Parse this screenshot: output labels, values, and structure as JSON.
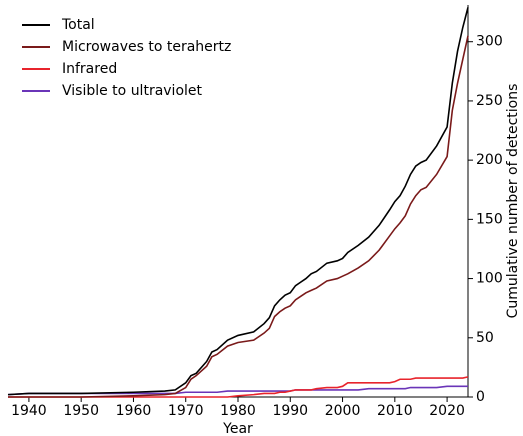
{
  "chart_data": {
    "type": "line",
    "xlabel": "Year",
    "ylabel": "Cumulative number of detections",
    "x": [
      1936,
      1940,
      1950,
      1960,
      1966,
      1968,
      1970,
      1971,
      1972,
      1974,
      1975,
      1976,
      1978,
      1980,
      1983,
      1985,
      1986,
      1987,
      1988,
      1989,
      1990,
      1991,
      1992,
      1993,
      1994,
      1995,
      1997,
      1999,
      2000,
      2001,
      2003,
      2005,
      2007,
      2009,
      2010,
      2011,
      2012,
      2013,
      2014,
      2015,
      2016,
      2018,
      2020,
      2021,
      2022,
      2023,
      2024
    ],
    "series": [
      {
        "name": "Total",
        "color": "#000000",
        "values": [
          2,
          3,
          3,
          4,
          5,
          6,
          12,
          18,
          20,
          30,
          38,
          40,
          48,
          52,
          55,
          62,
          67,
          77,
          82,
          86,
          88,
          94,
          97,
          100,
          104,
          106,
          113,
          115,
          117,
          122,
          128,
          135,
          145,
          158,
          165,
          170,
          178,
          188,
          195,
          198,
          200,
          212,
          228,
          265,
          292,
          312,
          329
        ]
      },
      {
        "name": "Microwaves to terahertz",
        "color": "#7a1a1a",
        "values": [
          0,
          0,
          0,
          1,
          2,
          3,
          8,
          15,
          18,
          26,
          34,
          36,
          43,
          46,
          48,
          54,
          58,
          68,
          72,
          75,
          77,
          82,
          85,
          88,
          90,
          92,
          98,
          100,
          102,
          104,
          109,
          115,
          124,
          136,
          142,
          147,
          153,
          163,
          170,
          175,
          177,
          188,
          203,
          242,
          265,
          285,
          305
        ]
      },
      {
        "name": "Infrared",
        "color": "#e8242c",
        "values": [
          0,
          0,
          0,
          0,
          0,
          0,
          0,
          0,
          0,
          0,
          0,
          0,
          0,
          1,
          2,
          3,
          3,
          3,
          4,
          4,
          5,
          6,
          6,
          6,
          6,
          7,
          8,
          8,
          9,
          12,
          12,
          12,
          12,
          12,
          13,
          15,
          15,
          15,
          16,
          16,
          16,
          16,
          16,
          16,
          16,
          16,
          17
        ]
      },
      {
        "name": "Visible to ultraviolet",
        "color": "#6a35b8",
        "values": [
          2,
          3,
          3,
          3,
          3,
          3,
          4,
          4,
          4,
          4,
          4,
          4,
          5,
          5,
          5,
          5,
          5,
          5,
          5,
          5,
          5,
          6,
          6,
          6,
          6,
          6,
          6,
          6,
          6,
          6,
          6,
          7,
          7,
          7,
          7,
          7,
          7,
          8,
          8,
          8,
          8,
          8,
          9,
          9,
          9,
          9,
          9
        ]
      }
    ],
    "xlim": [
      1936,
      2024
    ],
    "xticks": [
      1940,
      1950,
      1960,
      1970,
      1980,
      1990,
      2000,
      2010,
      2020
    ],
    "ylim": [
      0,
      331
    ],
    "yticks": [
      0,
      50,
      100,
      150,
      200,
      250,
      300
    ],
    "yaxis_side": "right",
    "legend": "upper left",
    "grid": false
  }
}
